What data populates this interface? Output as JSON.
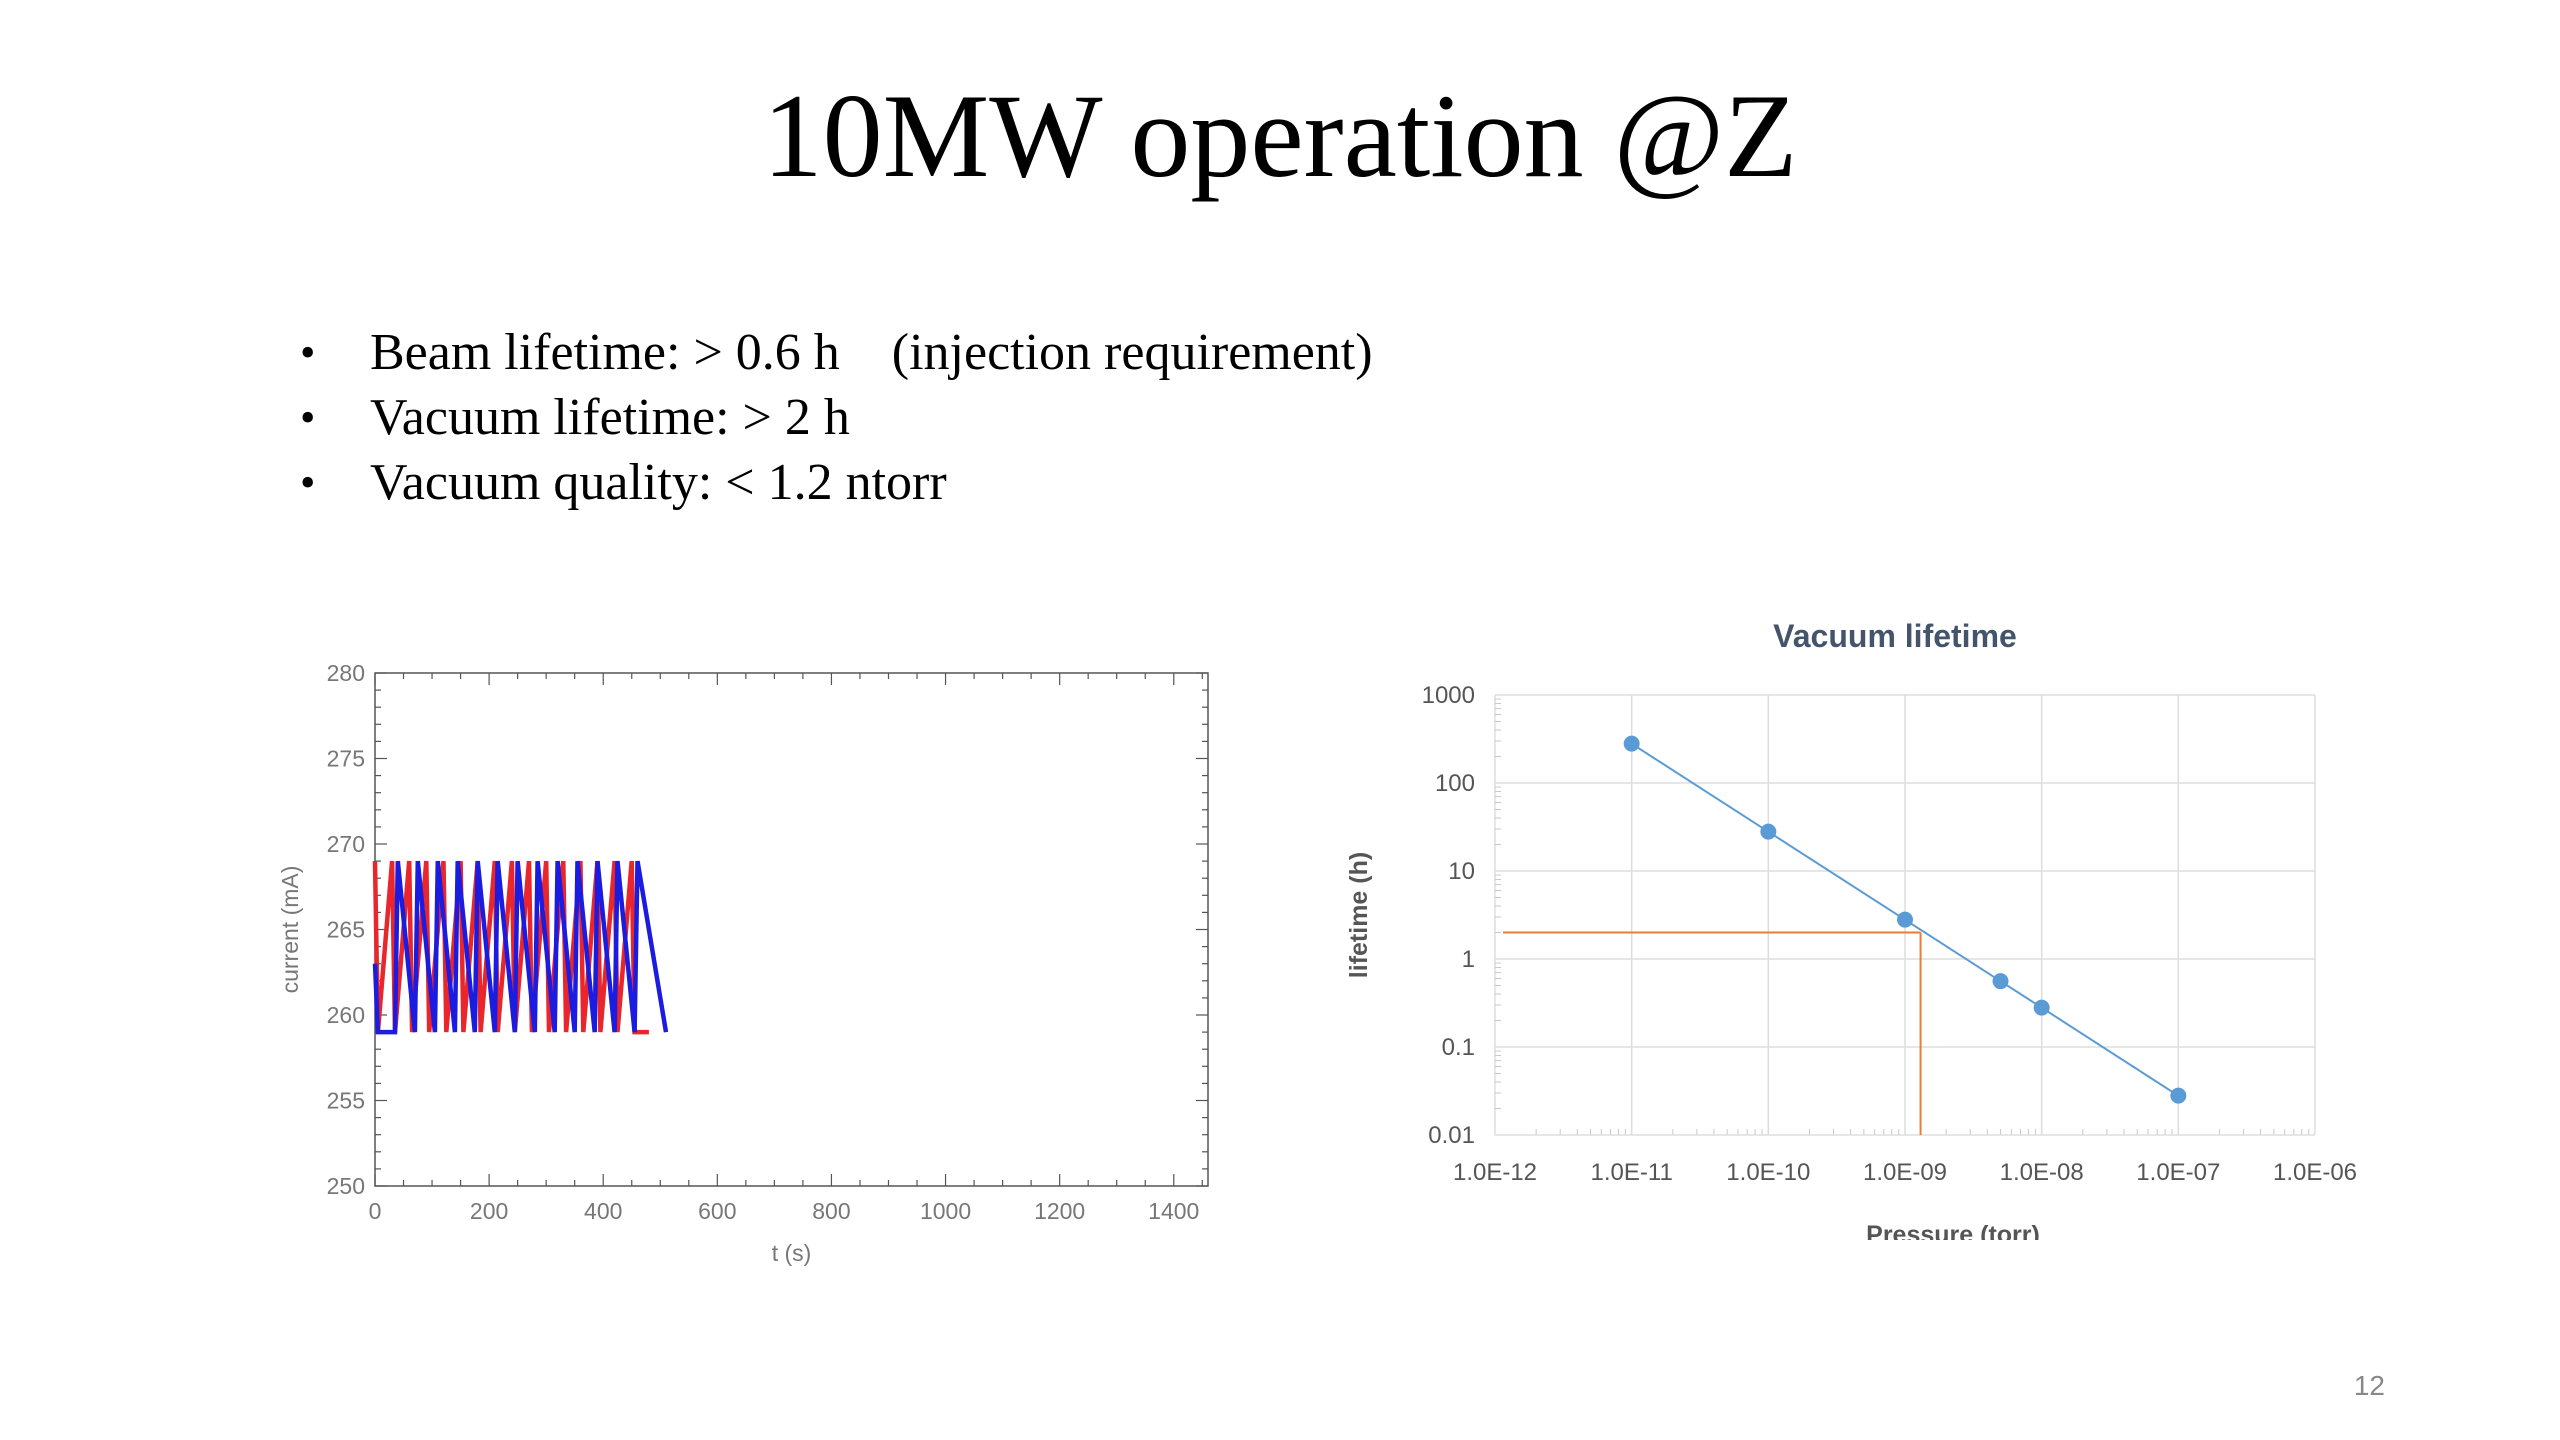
{
  "slide": {
    "title": "10MW operation @Z",
    "bullets": [
      "Beam lifetime: > 0.6 h    (injection requirement)",
      "Vacuum lifetime: > 2 h",
      "Vacuum quality: < 1.2 ntorr"
    ],
    "page_number": "12"
  },
  "chart_data": [
    {
      "type": "line",
      "title": "",
      "xlabel": "t (s)",
      "ylabel": "current (mA)",
      "xlim": [
        0,
        1460
      ],
      "ylim": [
        250,
        280
      ],
      "xticks": [
        0,
        200,
        400,
        600,
        800,
        1000,
        1200,
        1400
      ],
      "yticks": [
        250,
        255,
        260,
        265,
        270,
        275,
        280
      ],
      "colors": {
        "series_1": "#e8262c",
        "series_2": "#1c1ce0",
        "axis": "#555555"
      },
      "grid": false,
      "series": [
        {
          "color": "#e8262c",
          "x": [
            0,
            5,
            30,
            35,
            60,
            65,
            90,
            95,
            120,
            125,
            150,
            155,
            180,
            185,
            210,
            215,
            240,
            245,
            270,
            275,
            300,
            305,
            330,
            335,
            360,
            365,
            390,
            395,
            420,
            425,
            450,
            455,
            480
          ],
          "y": [
            269,
            259,
            269,
            259,
            269,
            259,
            269,
            259,
            269,
            259,
            269,
            259,
            269,
            259,
            269,
            259,
            269,
            259,
            269,
            259,
            269,
            259,
            269,
            259,
            269,
            259,
            269,
            259,
            269,
            259,
            269,
            259,
            259
          ]
        },
        {
          "color": "#1c1ce0",
          "x": [
            0,
            5,
            35,
            40,
            70,
            75,
            105,
            110,
            140,
            145,
            175,
            180,
            210,
            215,
            245,
            250,
            280,
            285,
            315,
            320,
            350,
            355,
            385,
            390,
            420,
            425,
            455,
            460,
            510
          ],
          "y": [
            263,
            259,
            259,
            269,
            259,
            269,
            259,
            269,
            259,
            269,
            259,
            269,
            259,
            269,
            259,
            269,
            259,
            269,
            259,
            269,
            259,
            269,
            259,
            269,
            259,
            269,
            259,
            269,
            259
          ]
        }
      ]
    },
    {
      "type": "scatter",
      "title": "Vacuum lifetime",
      "xlabel": "Pressure (torr)",
      "ylabel": "lifetime (h)",
      "xscale": "log",
      "yscale": "log",
      "xlim": [
        1e-12,
        1e-06
      ],
      "ylim": [
        0.01,
        1000
      ],
      "xtick_labels": [
        "1.0E-12",
        "1.0E-11",
        "1.0E-10",
        "1.0E-09",
        "1.0E-08",
        "1.0E-07",
        "1.0E-06"
      ],
      "ytick_labels": [
        "0.01",
        "0.1",
        "1",
        "10",
        "100",
        "1000"
      ],
      "grid": true,
      "colors": {
        "series": "#5b9bd5",
        "reference": "#ed7d31",
        "grid": "#dddddd",
        "title": "#44546a"
      },
      "series": [
        {
          "x": [
            1e-11,
            1e-10,
            1e-09,
            5e-09,
            1e-08,
            1e-07
          ],
          "y": [
            280,
            28,
            2.8,
            0.56,
            0.28,
            0.028
          ],
          "connected": true
        }
      ],
      "reference_lines": {
        "lifetime": 2,
        "pressure": 1.3e-09
      }
    }
  ]
}
